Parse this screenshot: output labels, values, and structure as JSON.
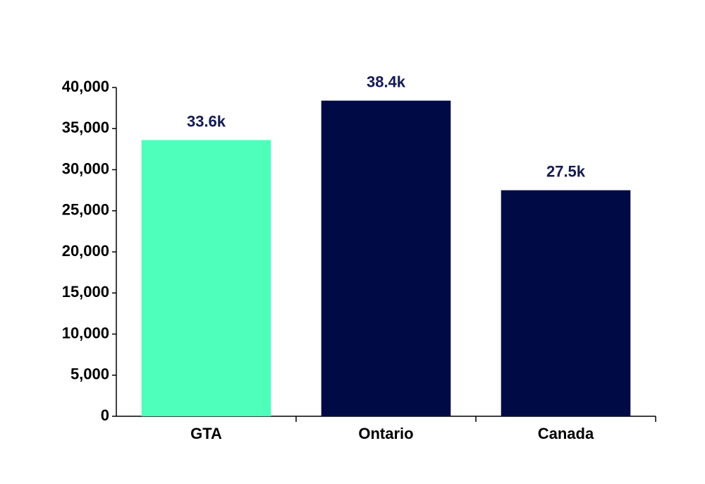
{
  "chart_data": {
    "type": "bar",
    "categories": [
      "GTA",
      "Ontario",
      "Canada"
    ],
    "values": [
      33600,
      38400,
      27500
    ],
    "value_labels": [
      "33.6k",
      "38.4k",
      "27.5k"
    ],
    "colors": [
      "#4dffbb",
      "#000a45",
      "#000a45"
    ],
    "label_color": "#141a52",
    "ylim": [
      0,
      40000
    ],
    "yticks": [
      0,
      {
        "value": 5000,
        "label": "5,000"
      },
      {
        "value": 10000,
        "label": "10,000"
      },
      {
        "value": 15000,
        "label": "15,000"
      },
      {
        "value": 20000,
        "label": "20,000"
      },
      {
        "value": 25000,
        "label": "25,000"
      },
      {
        "value": 30000,
        "label": "30,000"
      },
      {
        "value": 35000,
        "label": "35,000"
      },
      {
        "value": 40000,
        "label": "40,000"
      }
    ],
    "grid": false
  }
}
